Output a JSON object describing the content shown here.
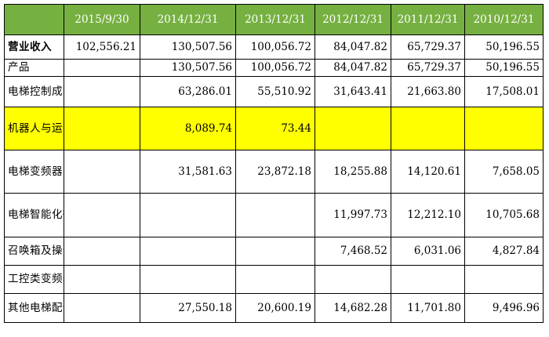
{
  "table": {
    "headers": [
      "",
      "2015/9/30",
      "2014/12/31",
      "2013/12/31",
      "2012/12/31",
      "2011/12/31",
      "2010/12/31"
    ],
    "rows": [
      {
        "label": "营业收入",
        "bold": true,
        "highlight": false,
        "values": [
          "102,556.21",
          "130,507.56",
          "100,056.72",
          "84,047.82",
          "65,729.37",
          "50,196.55"
        ]
      },
      {
        "label": "产品",
        "bold": false,
        "highlight": false,
        "values": [
          "",
          "130,507.56",
          "100,056.72",
          "84,047.82",
          "65,729.37",
          "50,196.55"
        ]
      },
      {
        "label": "电梯控制成套系统",
        "bold": false,
        "highlight": false,
        "values": [
          "",
          "63,286.01",
          "55,510.92",
          "31,643.41",
          "21,663.80",
          "17,508.01"
        ]
      },
      {
        "label": "机器人与运动控制类产品",
        "bold": false,
        "highlight": true,
        "values": [
          "",
          "8,089.74",
          "73.44",
          "",
          "",
          ""
        ]
      },
      {
        "label": "电梯变频器系列产品",
        "bold": false,
        "highlight": false,
        "values": [
          "",
          "31,581.63",
          "23,872.18",
          "18,255.88",
          "14,120.61",
          "7,658.05"
        ]
      },
      {
        "label": "电梯智能化微机控制板",
        "bold": false,
        "highlight": false,
        "values": [
          "",
          "",
          "",
          "11,997.73",
          "12,212.10",
          "10,705.68"
        ]
      },
      {
        "label": "召唤箱及操作箱",
        "bold": false,
        "highlight": false,
        "values": [
          "",
          "",
          "",
          "7,468.52",
          "6,031.06",
          "4,827.84"
        ]
      },
      {
        "label": "工控类变频器",
        "bold": false,
        "highlight": false,
        "values": [
          "",
          "",
          "",
          "",
          "",
          ""
        ]
      },
      {
        "label": "其他电梯配件产品",
        "bold": false,
        "highlight": false,
        "values": [
          "",
          "27,550.18",
          "20,600.19",
          "14,682.28",
          "11,701.80",
          "9,496.96"
        ]
      }
    ],
    "colors": {
      "header_bg": "#76b041",
      "header_text": "#ffffff",
      "highlight_bg": "#ffff00"
    }
  }
}
